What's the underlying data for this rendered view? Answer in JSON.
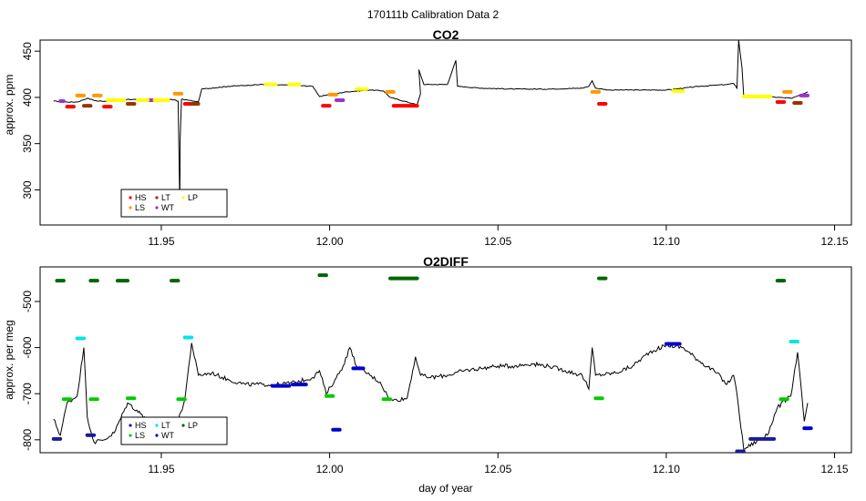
{
  "figure": {
    "suptitle": "170111b   Calibration Data 2",
    "xlabel": "day of year"
  },
  "colors": {
    "HS": "#ff0000",
    "LS": "#ff9900",
    "LT": "#993300",
    "WT": "#9933cc",
    "LP": "#ffff00",
    "baseline": "#000000",
    "O2_HS": "#1a1a99",
    "O2_LS": "#00cc00",
    "O2_LT": "#00e5e5",
    "O2_WT": "#0000cc",
    "O2_LP": "#006600"
  },
  "chart_data": [
    {
      "type": "line",
      "title": "CO2",
      "xlabel": "",
      "ylabel": "approx. ppm",
      "xlim": [
        11.914,
        12.155
      ],
      "ylim": [
        262,
        462
      ],
      "xticks": [
        11.95,
        12.0,
        12.05,
        12.1,
        12.15
      ],
      "xtick_labels": [
        "11.95",
        "12.00",
        "12.05",
        "12.10",
        "12.15"
      ],
      "yticks": [
        300,
        350,
        400,
        450
      ],
      "ytick_labels": [
        "300",
        "350",
        "400",
        "450"
      ],
      "legend": {
        "position": "bottom-left",
        "entries": [
          "HS",
          "LS",
          "LT",
          "WT",
          "LP"
        ]
      },
      "series": [
        {
          "name": "HS",
          "color_key": "HS",
          "segments": [
            [
              11.922,
              11.924,
              390
            ],
            [
              11.933,
              11.935,
              390
            ],
            [
              11.957,
              11.959,
              393
            ],
            [
              11.998,
              12.0,
              391
            ],
            [
              12.019,
              12.026,
              391
            ],
            [
              12.08,
              12.082,
              393
            ],
            [
              12.133,
              12.135,
              395
            ]
          ]
        },
        {
          "name": "LS",
          "color_key": "LS",
          "segments": [
            [
              11.925,
              11.927,
              402
            ],
            [
              11.93,
              11.932,
              402
            ],
            [
              11.954,
              11.956,
              404
            ],
            [
              12.0,
              12.002,
              403
            ],
            [
              12.017,
              12.019,
              406
            ],
            [
              12.078,
              12.08,
              406
            ],
            [
              12.135,
              12.137,
              406
            ]
          ]
        },
        {
          "name": "LT",
          "color_key": "LT",
          "segments": [
            [
              11.927,
              11.929,
              391
            ],
            [
              11.94,
              11.942,
              393
            ],
            [
              11.959,
              11.961,
              393
            ],
            [
              12.138,
              12.14,
              394
            ]
          ]
        },
        {
          "name": "WT",
          "color_key": "WT",
          "segments": [
            [
              11.92,
              11.921,
              396
            ],
            [
              11.946,
              11.948,
              397
            ],
            [
              12.002,
              12.004,
              397
            ],
            [
              12.14,
              12.142,
              402
            ]
          ]
        },
        {
          "name": "LP",
          "color_key": "LP",
          "segments": [
            [
              11.934,
              11.939,
              397
            ],
            [
              11.943,
              11.946,
              397
            ],
            [
              11.948,
              11.952,
              397
            ],
            [
              11.981,
              11.984,
              414
            ],
            [
              11.988,
              11.991,
              414
            ],
            [
              12.008,
              12.011,
              409
            ],
            [
              12.102,
              12.105,
              407
            ],
            [
              12.123,
              12.131,
              401
            ]
          ]
        }
      ],
      "baseline_points": [
        [
          11.918,
          396
        ],
        [
          11.922,
          395
        ],
        [
          11.925,
          395
        ],
        [
          11.928,
          399
        ],
        [
          11.931,
          396
        ],
        [
          11.936,
          396
        ],
        [
          11.94,
          398
        ],
        [
          11.945,
          397
        ],
        [
          11.95,
          397
        ],
        [
          11.953,
          398
        ],
        [
          11.955,
          396
        ],
        [
          11.9555,
          281
        ],
        [
          11.9556,
          355
        ],
        [
          11.956,
          398
        ],
        [
          11.958,
          397
        ],
        [
          11.961,
          395
        ],
        [
          11.962,
          409
        ],
        [
          11.97,
          412
        ],
        [
          11.98,
          414
        ],
        [
          11.99,
          413
        ],
        [
          11.995,
          412
        ],
        [
          11.997,
          401
        ],
        [
          12.005,
          406
        ],
        [
          12.012,
          408
        ],
        [
          12.016,
          407
        ],
        [
          12.018,
          400
        ],
        [
          12.026,
          392
        ],
        [
          12.027,
          404
        ],
        [
          12.0265,
          430
        ],
        [
          12.028,
          414
        ],
        [
          12.03,
          414
        ],
        [
          12.035,
          414
        ],
        [
          12.0375,
          440
        ],
        [
          12.038,
          412
        ],
        [
          12.045,
          410
        ],
        [
          12.055,
          409
        ],
        [
          12.065,
          409
        ],
        [
          12.075,
          410
        ],
        [
          12.077,
          412
        ],
        [
          12.078,
          418
        ],
        [
          12.079,
          410
        ],
        [
          12.083,
          408
        ],
        [
          12.09,
          408
        ],
        [
          12.1,
          408
        ],
        [
          12.11,
          412
        ],
        [
          12.118,
          414
        ],
        [
          12.12,
          415
        ],
        [
          12.121,
          410
        ],
        [
          12.1215,
          462
        ],
        [
          12.1225,
          432
        ],
        [
          12.123,
          402
        ],
        [
          12.13,
          401
        ],
        [
          12.133,
          400
        ],
        [
          12.137,
          399
        ],
        [
          12.142,
          406
        ]
      ]
    },
    {
      "type": "line",
      "title": "O2DIFF",
      "xlabel": "day of year",
      "ylabel": "approx. per meg",
      "xlim": [
        11.914,
        12.155
      ],
      "ylim": [
        -828,
        -425
      ],
      "xticks": [
        11.95,
        12.0,
        12.05,
        12.1,
        12.15
      ],
      "xtick_labels": [
        "11.95",
        "12.00",
        "12.05",
        "12.10",
        "12.15"
      ],
      "yticks": [
        -500,
        -600,
        -700,
        -800
      ],
      "ytick_labels": [
        "-500",
        "-600",
        "-700",
        "-800"
      ],
      "legend": {
        "position": "bottom-left",
        "entries": [
          "HS",
          "LS",
          "LT",
          "WT",
          "LP"
        ]
      },
      "series": [
        {
          "name": "HS",
          "color_key": "O2_HS",
          "segments": [
            [
              11.918,
              11.92,
              -798
            ],
            [
              11.928,
              11.93,
              -790
            ],
            [
              12.121,
              12.123,
              -825
            ],
            [
              12.125,
              12.132,
              -798
            ]
          ]
        },
        {
          "name": "LS",
          "color_key": "O2_LS",
          "segments": [
            [
              11.921,
              11.923,
              -712
            ],
            [
              11.929,
              11.931,
              -712
            ],
            [
              11.94,
              11.942,
              -710
            ],
            [
              11.955,
              11.957,
              -712
            ],
            [
              11.999,
              12.001,
              -705
            ],
            [
              12.016,
              12.018,
              -712
            ],
            [
              12.079,
              12.081,
              -710
            ],
            [
              12.134,
              12.136,
              -712
            ]
          ]
        },
        {
          "name": "LT",
          "color_key": "O2_LT",
          "segments": [
            [
              11.925,
              11.927,
              -580
            ],
            [
              11.957,
              11.959,
              -578
            ],
            [
              12.137,
              12.139,
              -587
            ]
          ]
        },
        {
          "name": "WT",
          "color_key": "O2_WT",
          "segments": [
            [
              11.983,
              11.988,
              -683
            ],
            [
              11.989,
              11.993,
              -680
            ],
            [
              12.001,
              12.003,
              -778
            ],
            [
              12.007,
              12.01,
              -645
            ],
            [
              12.1,
              12.104,
              -592
            ],
            [
              12.141,
              12.143,
              -775
            ]
          ]
        },
        {
          "name": "LP",
          "color_key": "O2_LP",
          "segments": [
            [
              11.919,
              11.921,
              -455
            ],
            [
              11.929,
              11.931,
              -455
            ],
            [
              11.937,
              11.94,
              -455
            ],
            [
              11.953,
              11.955,
              -455
            ],
            [
              11.997,
              11.999,
              -443
            ],
            [
              12.018,
              12.026,
              -450
            ],
            [
              12.08,
              12.082,
              -450
            ],
            [
              12.133,
              12.135,
              -455
            ]
          ]
        }
      ],
      "baseline_points": [
        [
          11.918,
          -755
        ],
        [
          11.92,
          -790
        ],
        [
          11.922,
          -720
        ],
        [
          11.925,
          -705
        ],
        [
          11.927,
          -600
        ],
        [
          11.928,
          -750
        ],
        [
          11.93,
          -805
        ],
        [
          11.933,
          -800
        ],
        [
          11.936,
          -785
        ],
        [
          11.94,
          -720
        ],
        [
          11.945,
          -750
        ],
        [
          11.95,
          -790
        ],
        [
          11.955,
          -760
        ],
        [
          11.957,
          -712
        ],
        [
          11.959,
          -590
        ],
        [
          11.961,
          -660
        ],
        [
          11.965,
          -655
        ],
        [
          11.97,
          -670
        ],
        [
          11.975,
          -680
        ],
        [
          11.98,
          -680
        ],
        [
          11.985,
          -680
        ],
        [
          11.99,
          -675
        ],
        [
          11.995,
          -665
        ],
        [
          11.997,
          -650
        ],
        [
          11.999,
          -700
        ],
        [
          12.002,
          -665
        ],
        [
          12.004,
          -640
        ],
        [
          12.006,
          -600
        ],
        [
          12.008,
          -640
        ],
        [
          12.012,
          -660
        ],
        [
          12.015,
          -675
        ],
        [
          12.018,
          -715
        ],
        [
          12.023,
          -710
        ],
        [
          12.0255,
          -620
        ],
        [
          12.027,
          -660
        ],
        [
          12.03,
          -665
        ],
        [
          12.035,
          -660
        ],
        [
          12.04,
          -650
        ],
        [
          12.045,
          -645
        ],
        [
          12.05,
          -640
        ],
        [
          12.055,
          -640
        ],
        [
          12.06,
          -635
        ],
        [
          12.065,
          -640
        ],
        [
          12.07,
          -650
        ],
        [
          12.075,
          -660
        ],
        [
          12.077,
          -690
        ],
        [
          12.078,
          -600
        ],
        [
          12.079,
          -660
        ],
        [
          12.085,
          -655
        ],
        [
          12.09,
          -640
        ],
        [
          12.095,
          -610
        ],
        [
          12.1,
          -595
        ],
        [
          12.105,
          -600
        ],
        [
          12.11,
          -630
        ],
        [
          12.115,
          -655
        ],
        [
          12.118,
          -680
        ],
        [
          12.12,
          -660
        ],
        [
          12.121,
          -700
        ],
        [
          12.123,
          -820
        ],
        [
          12.13,
          -790
        ],
        [
          12.133,
          -730
        ],
        [
          12.137,
          -705
        ],
        [
          12.139,
          -610
        ],
        [
          12.141,
          -760
        ],
        [
          12.142,
          -720
        ]
      ]
    }
  ]
}
